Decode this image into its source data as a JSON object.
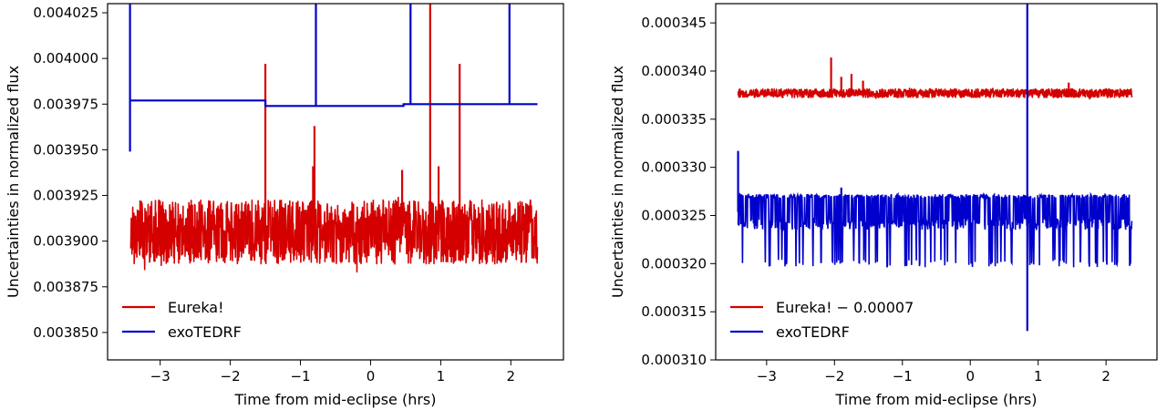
{
  "chart_data": [
    {
      "type": "line",
      "xlabel": "Time from mid-eclipse (hrs)",
      "ylabel": "Uncertainties in normalized flux",
      "xlim": [
        -3.75,
        2.75
      ],
      "ylim": [
        0.003835,
        0.00403
      ],
      "xticks": [
        -3,
        -2,
        -1,
        0,
        1,
        2
      ],
      "xtick_labels": [
        "−3",
        "−2",
        "−1",
        "0",
        "1",
        "2"
      ],
      "yticks": [
        0.00385,
        0.003875,
        0.0039,
        0.003925,
        0.00395,
        0.003975,
        0.004,
        0.004025
      ],
      "ytick_labels": [
        "0.003850",
        "0.003875",
        "0.003900",
        "0.003925",
        "0.003950",
        "0.003975",
        "0.004000",
        "0.004025"
      ],
      "legend_position": "lower-left",
      "series": [
        {
          "name": "Eureka!",
          "color": "#d40000",
          "kind": "noise",
          "x_range": [
            -3.42,
            2.38
          ],
          "center": 0.003905,
          "halfwidth": 1.75e-05,
          "spikes": [
            {
              "x": -1.5,
              "y": 0.003997
            },
            {
              "x": -0.8,
              "y": 0.003963
            },
            {
              "x": -0.82,
              "y": 0.003941
            },
            {
              "x": 0.45,
              "y": 0.003939
            },
            {
              "x": 0.85,
              "y": 0.00403
            },
            {
              "x": 0.97,
              "y": 0.003941
            },
            {
              "x": 1.27,
              "y": 0.003997
            }
          ]
        },
        {
          "name": "exoTEDRF",
          "color": "#0000cc",
          "kind": "step",
          "points": [
            [
              -3.43,
              0.003949
            ],
            [
              -3.43,
              0.00403
            ],
            [
              -3.43,
              0.003977
            ],
            [
              -1.5,
              0.003977
            ],
            [
              -1.5,
              0.003974
            ],
            [
              -0.78,
              0.003974
            ],
            [
              -0.78,
              0.00403
            ],
            [
              -0.78,
              0.003974
            ],
            [
              0.47,
              0.003974
            ],
            [
              0.47,
              0.003975
            ],
            [
              0.57,
              0.003975
            ],
            [
              0.57,
              0.00403
            ],
            [
              0.57,
              0.003975
            ],
            [
              1.98,
              0.003975
            ],
            [
              1.98,
              0.00403
            ],
            [
              1.98,
              0.003975
            ],
            [
              2.38,
              0.003975
            ]
          ]
        }
      ]
    },
    {
      "type": "line",
      "xlabel": "Time from mid-eclipse (hrs)",
      "ylabel": "Uncertainties in normalized flux",
      "xlim": [
        -3.75,
        2.75
      ],
      "ylim": [
        0.00031,
        0.000347
      ],
      "xticks": [
        -3,
        -2,
        -1,
        0,
        1,
        2
      ],
      "xtick_labels": [
        "−3",
        "−2",
        "−1",
        "0",
        "1",
        "2"
      ],
      "yticks": [
        0.00031,
        0.000315,
        0.00032,
        0.000325,
        0.00033,
        0.000335,
        0.00034,
        0.000345
      ],
      "ytick_labels": [
        "0.000310",
        "0.000315",
        "0.000320",
        "0.000325",
        "0.000330",
        "0.000335",
        "0.000340",
        "0.000345"
      ],
      "legend_position": "lower-left",
      "series": [
        {
          "name": "Eureka! − 0.00007",
          "color": "#d40000",
          "kind": "noise",
          "x_range": [
            -3.42,
            2.38
          ],
          "center": 0.0003377,
          "halfwidth": 4.5e-07,
          "spikes": [
            {
              "x": -2.05,
              "y": 0.0003414
            },
            {
              "x": -1.75,
              "y": 0.0003397
            },
            {
              "x": -1.9,
              "y": 0.0003394
            },
            {
              "x": -1.58,
              "y": 0.000339
            },
            {
              "x": 1.45,
              "y": 0.0003388
            }
          ]
        },
        {
          "name": "exoTEDRF",
          "color": "#0000cc",
          "kind": "band",
          "x_range": [
            -3.42,
            2.38
          ],
          "low": 0.0003235,
          "high": 0.0003272,
          "dip": 0.0003196,
          "spikes": [
            {
              "x": -3.42,
              "y": 0.0003317
            },
            {
              "x": 0.84,
              "y": 0.000347
            },
            {
              "x": 0.84,
              "y": 0.000313
            },
            {
              "x": -1.9,
              "y": 0.0003279
            }
          ]
        }
      ]
    }
  ]
}
